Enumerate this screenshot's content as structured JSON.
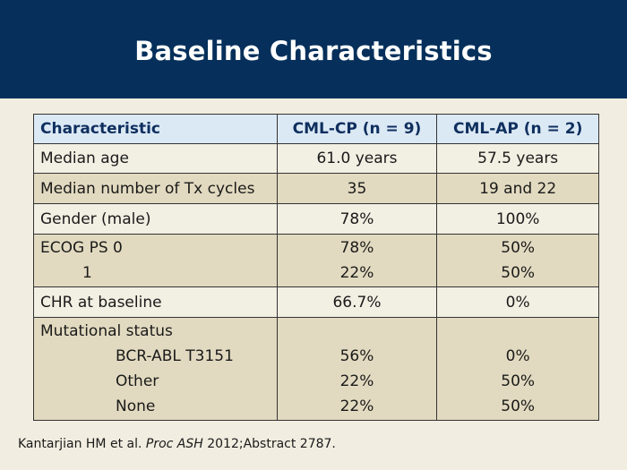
{
  "slide": {
    "title": "Baseline Characteristics"
  },
  "table": {
    "headers": [
      "Characteristic",
      "CML-CP (n = 9)",
      "CML-AP (n = 2)"
    ],
    "rows": {
      "median_age": {
        "label": "Median age",
        "cp": "61.0 years",
        "ap": "57.5 years"
      },
      "tx_cycles": {
        "label": "Median number of Tx cycles",
        "cp": "35",
        "ap": "19 and 22"
      },
      "gender": {
        "label": "Gender (male)",
        "cp": "78%",
        "ap": "100%"
      },
      "ecog": {
        "label0": "ECOG PS 0",
        "cp0": "78%",
        "ap0": "50%",
        "label1": "1",
        "cp1": "22%",
        "ap1": "50%"
      },
      "chr": {
        "label": "CHR at baseline",
        "cp": "66.7%",
        "ap": "0%"
      },
      "mutational": {
        "label": "Mutational status",
        "sub": [
          {
            "label": "BCR-ABL T3151",
            "cp": "56%",
            "ap": "0%"
          },
          {
            "label": "Other",
            "cp": "22%",
            "ap": "50%"
          },
          {
            "label": "None",
            "cp": "22%",
            "ap": "50%"
          }
        ]
      }
    }
  },
  "footnote": {
    "author": "Kantarjian HM et al.",
    "journal": "Proc ASH",
    "rest": "2012;Abstract 2787."
  }
}
